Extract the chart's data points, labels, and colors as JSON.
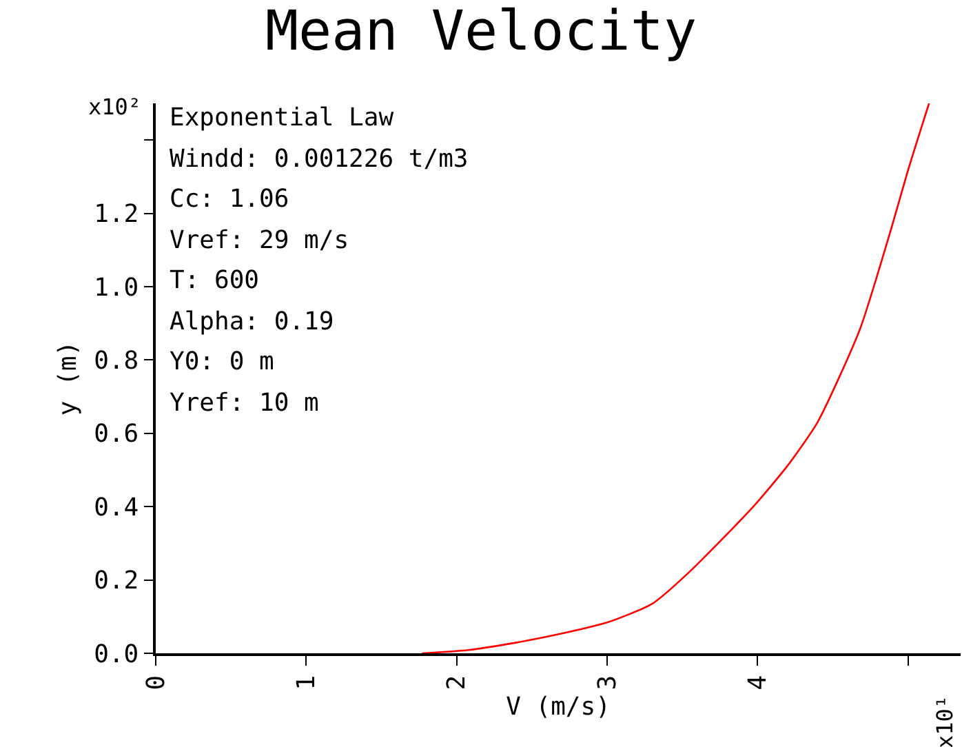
{
  "chart_data": {
    "type": "line",
    "title": "Mean Velocity",
    "xlabel": "V (m/s)",
    "ylabel": "y (m)",
    "annotations": [
      "x10²",
      "x10¹",
      "Exponential Law",
      "Windd: 0.001226 t/m3",
      "Cc: 1.06",
      "Vref: 29 m/s",
      "T: 600",
      "Alpha: 0.19",
      "Y0: 0 m",
      "Yref: 10 m"
    ],
    "series": [
      {
        "color": "#ff0000",
        "x": [
          1.77,
          2.08,
          2.38,
          2.69,
          3.0,
          3.3,
          3.55,
          3.97,
          4.2,
          4.4,
          4.68,
          4.89,
          5.0,
          5.14
        ],
        "values": [
          0,
          0.009,
          0.028,
          0.053,
          0.084,
          0.135,
          0.223,
          0.399,
          0.512,
          0.631,
          0.883,
          1.16,
          1.317,
          1.5
        ]
      }
    ],
    "xlim": [
      0,
      5.35
    ],
    "xticks": [
      0,
      1,
      2,
      3,
      4,
      {
        "value": 5,
        "label": null
      }
    ],
    "ylim": [
      0,
      1.5
    ],
    "yticks": [
      {
        "value": 0,
        "label": "0.0"
      },
      {
        "value": 0.2,
        "label": "0.2"
      },
      {
        "value": 0.4,
        "label": "0.4"
      },
      {
        "value": 0.6,
        "label": "0.6"
      },
      {
        "value": 0.8,
        "label": "0.8"
      },
      {
        "value": 1,
        "label": "1.0"
      },
      {
        "value": 1.2,
        "label": "1.2"
      },
      {
        "value": 1.4,
        "label": null
      }
    ],
    "grid": false,
    "marker": "none",
    "line_style": "solid"
  }
}
